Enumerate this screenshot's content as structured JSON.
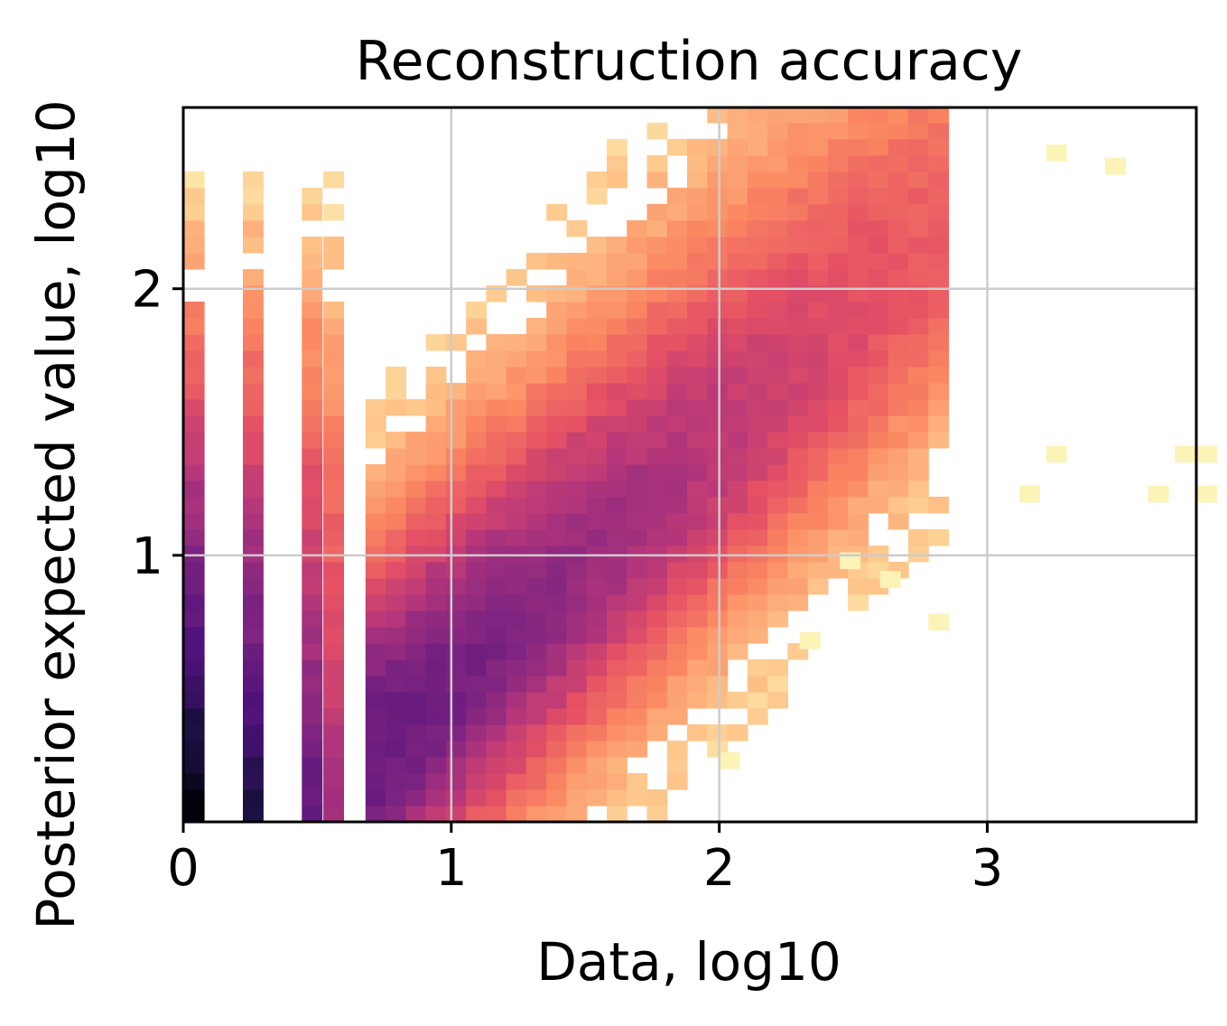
{
  "chart_data": {
    "type": "heatmap",
    "title": "Reconstruction accuracy",
    "xlabel": "Data, log10",
    "ylabel": "Posterior expected value, log10",
    "xlim": [
      0,
      3.78
    ],
    "ylim": [
      0,
      2.68
    ],
    "x_ticks": [
      {
        "value": 0,
        "label": "0"
      },
      {
        "value": 1,
        "label": "1"
      },
      {
        "value": 2,
        "label": "2"
      },
      {
        "value": 3,
        "label": "3"
      }
    ],
    "y_ticks": [
      {
        "value": 1,
        "label": "1"
      },
      {
        "value": 2,
        "label": "2"
      }
    ],
    "grid": true,
    "colormap": "magma",
    "colors": {
      "grid": "#cccccc",
      "frame": "#000000",
      "sparse": "#fefcbe"
    },
    "discrete_data_columns": [
      {
        "x": 0.04,
        "y_max": 2.43
      },
      {
        "x": 0.26,
        "y_max": 2.43
      },
      {
        "x": 0.48,
        "y_max": 2.43
      },
      {
        "x": 0.56,
        "y_max": 2.43
      }
    ],
    "density_ridge": {
      "description_points": [
        [
          0.7,
          0.4
        ],
        [
          1.0,
          0.9
        ],
        [
          1.3,
          1.3
        ],
        [
          1.6,
          1.6
        ],
        [
          2.0,
          1.9
        ],
        [
          2.4,
          2.2
        ],
        [
          2.7,
          2.4
        ]
      ],
      "upper_extent": [
        [
          0.7,
          2.2
        ],
        [
          1.2,
          2.3
        ],
        [
          1.8,
          2.4
        ],
        [
          2.2,
          2.6
        ],
        [
          2.7,
          2.65
        ]
      ],
      "lower_extent": [
        [
          0.8,
          0.0
        ],
        [
          1.3,
          0.05
        ],
        [
          1.7,
          0.3
        ],
        [
          2.0,
          0.6
        ],
        [
          2.4,
          0.9
        ],
        [
          2.8,
          1.3
        ]
      ]
    },
    "sparse_outliers": [
      [
        3.22,
        2.48
      ],
      [
        3.44,
        2.43
      ],
      [
        3.22,
        1.35
      ],
      [
        3.7,
        1.35
      ],
      [
        3.78,
        1.35
      ],
      [
        3.12,
        1.2
      ],
      [
        3.6,
        1.2
      ],
      [
        3.78,
        1.2
      ],
      [
        2.78,
        0.72
      ],
      [
        2.6,
        0.88
      ],
      [
        2.45,
        0.95
      ],
      [
        2.3,
        0.65
      ],
      [
        2.0,
        0.2
      ]
    ]
  }
}
